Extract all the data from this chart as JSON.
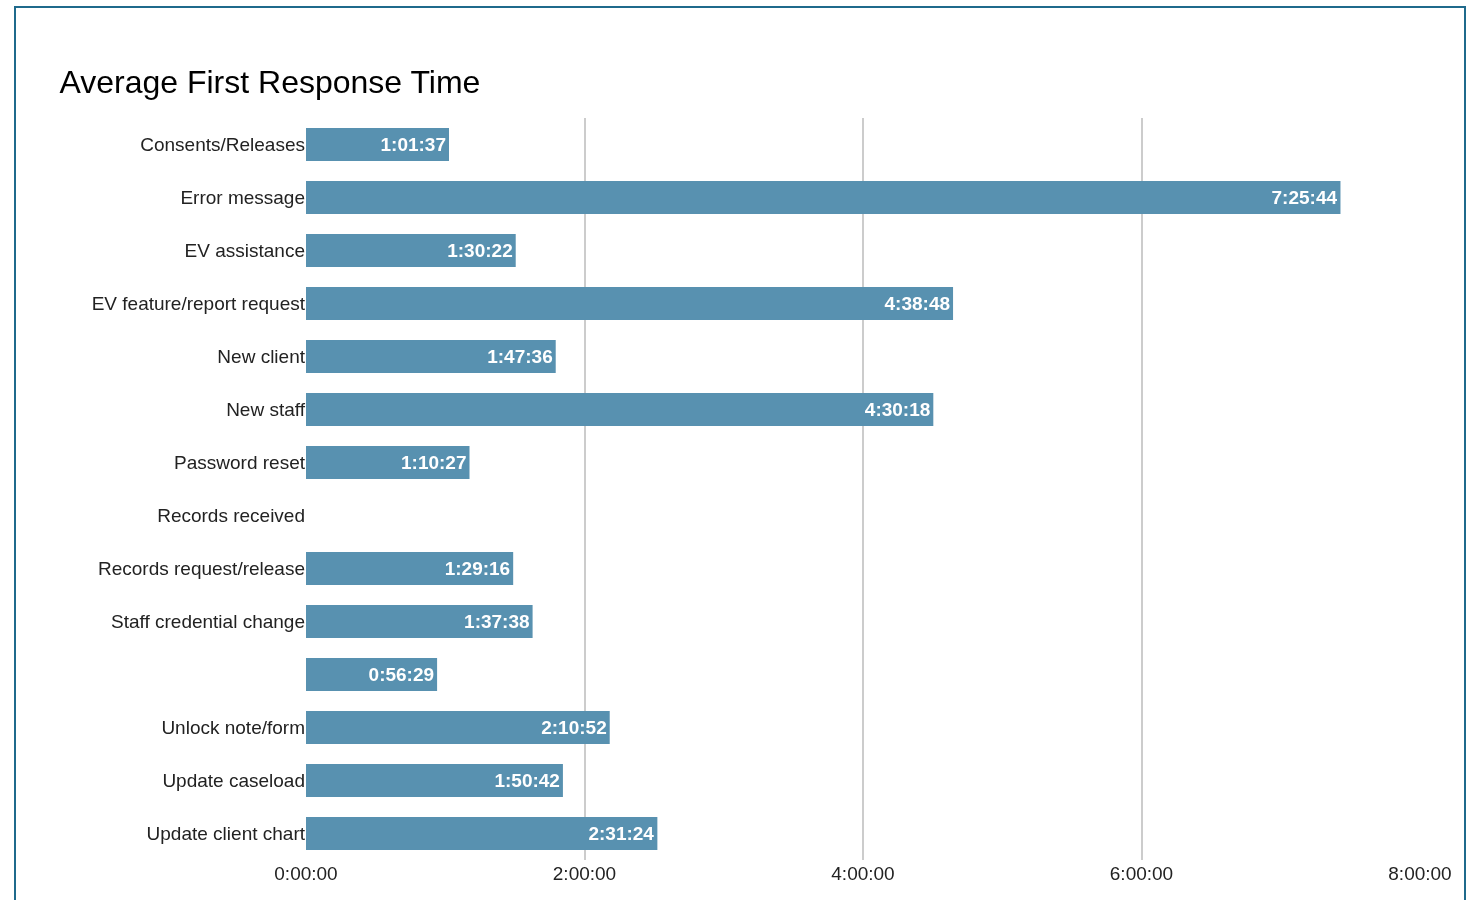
{
  "chart_data": {
    "type": "bar",
    "orientation": "horizontal",
    "title": "Average First Response Time",
    "categories": [
      "Consents/Releases",
      "Error message",
      "EV assistance",
      "EV feature/report request",
      "New client",
      "New staff",
      "Password reset",
      "Records received",
      "Records request/release",
      "Staff credential change",
      null,
      "Unlock note/form",
      "Update caseload",
      "Update client chart"
    ],
    "values": [
      1.0269,
      7.4289,
      1.5061,
      4.6467,
      1.7933,
      4.505,
      1.1742,
      null,
      1.4878,
      1.6272,
      0.9414,
      2.1811,
      1.845,
      2.5233
    ],
    "value_labels": [
      "1:01:37",
      "7:25:44",
      "1:30:22",
      "4:38:48",
      "1:47:36",
      "4:30:18",
      "1:10:27",
      null,
      "1:29:16",
      "1:37:38",
      "0:56:29",
      "2:10:52",
      "1:50:42",
      "2:31:24"
    ],
    "color": "#5891b0",
    "xlim": [
      0,
      8
    ],
    "xticks": [
      {
        "value": 0,
        "label": "0:00:00"
      },
      {
        "value": 2,
        "label": "2:00:00"
      },
      {
        "value": 4,
        "label": "4:00:00"
      },
      {
        "value": 6,
        "label": "6:00:00"
      },
      {
        "value": 8,
        "label": "8:00:00"
      }
    ],
    "grid": "x",
    "legend": false
  }
}
